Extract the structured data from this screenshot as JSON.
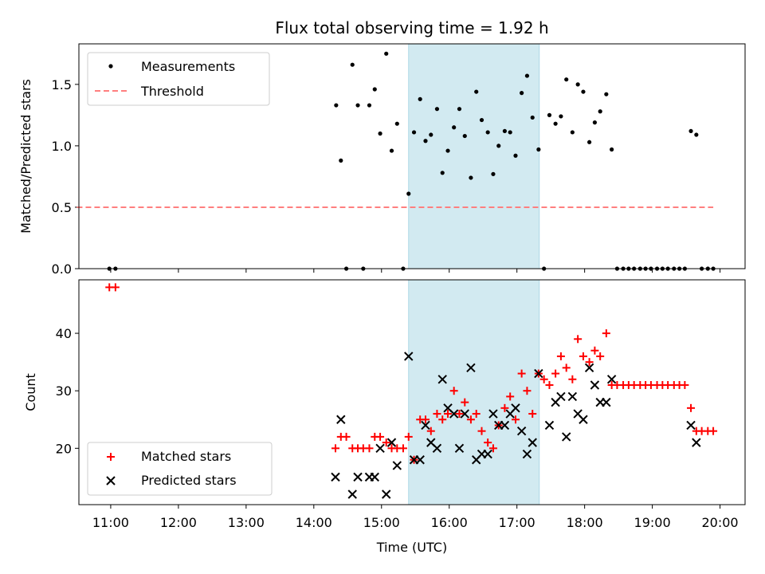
{
  "chart_data": {
    "type": "scatter",
    "title": "Flux total observing time = 1.92 h",
    "xlabel": "Time (UTC)",
    "x_tick_labels": [
      "11:00",
      "12:00",
      "13:00",
      "14:00",
      "15:00",
      "16:00",
      "17:00",
      "18:00",
      "19:00",
      "20:00"
    ],
    "x_range_hours": [
      10.53,
      20.37
    ],
    "shaded_interval_hours": [
      15.4,
      17.33
    ],
    "shade_color": "#add8e6",
    "top": {
      "ylabel": "Matched/Predicted stars",
      "ylim": [
        0.0,
        1.83
      ],
      "y_ticks": [
        "0.0",
        "0.5",
        "1.0",
        "1.5"
      ],
      "legend_position": "upper left",
      "threshold": {
        "name": "Threshold",
        "y": 0.5,
        "x_range": [
          10.5,
          19.9
        ],
        "color": "#ff7f7f"
      },
      "series": [
        {
          "name": "Measurements",
          "color": "#000000",
          "points": [
            [
              10.98,
              0
            ],
            [
              11.07,
              0
            ],
            [
              14.33,
              1.33
            ],
            [
              14.4,
              0.88
            ],
            [
              14.48,
              0
            ],
            [
              14.57,
              1.66
            ],
            [
              14.65,
              1.33
            ],
            [
              14.73,
              0
            ],
            [
              14.82,
              1.33
            ],
            [
              14.9,
              1.46
            ],
            [
              14.98,
              1.1
            ],
            [
              15.07,
              1.75
            ],
            [
              15.15,
              0.96
            ],
            [
              15.23,
              1.18
            ],
            [
              15.32,
              0
            ],
            [
              15.4,
              0.61
            ],
            [
              15.48,
              1.11
            ],
            [
              15.57,
              1.38
            ],
            [
              15.65,
              1.04
            ],
            [
              15.73,
              1.09
            ],
            [
              15.82,
              1.3
            ],
            [
              15.9,
              0.78
            ],
            [
              15.98,
              0.96
            ],
            [
              16.07,
              1.15
            ],
            [
              16.15,
              1.3
            ],
            [
              16.23,
              1.08
            ],
            [
              16.32,
              0.74
            ],
            [
              16.4,
              1.44
            ],
            [
              16.48,
              1.21
            ],
            [
              16.57,
              1.11
            ],
            [
              16.65,
              0.77
            ],
            [
              16.73,
              1.0
            ],
            [
              16.82,
              1.12
            ],
            [
              16.9,
              1.11
            ],
            [
              16.98,
              0.92
            ],
            [
              17.07,
              1.43
            ],
            [
              17.15,
              1.57
            ],
            [
              17.23,
              1.23
            ],
            [
              17.32,
              0.97
            ],
            [
              17.4,
              0
            ],
            [
              17.48,
              1.25
            ],
            [
              17.57,
              1.18
            ],
            [
              17.65,
              1.24
            ],
            [
              17.73,
              1.54
            ],
            [
              17.82,
              1.11
            ],
            [
              17.9,
              1.5
            ],
            [
              17.98,
              1.44
            ],
            [
              18.07,
              1.03
            ],
            [
              18.15,
              1.19
            ],
            [
              18.23,
              1.28
            ],
            [
              18.32,
              1.42
            ],
            [
              18.4,
              0.97
            ],
            [
              18.48,
              0
            ],
            [
              18.57,
              0
            ],
            [
              18.65,
              0
            ],
            [
              18.73,
              0
            ],
            [
              18.82,
              0
            ],
            [
              18.9,
              0
            ],
            [
              18.98,
              0
            ],
            [
              19.07,
              0
            ],
            [
              19.15,
              0
            ],
            [
              19.23,
              0
            ],
            [
              19.32,
              0
            ],
            [
              19.4,
              0
            ],
            [
              19.48,
              0
            ],
            [
              19.57,
              1.12
            ],
            [
              19.65,
              1.09
            ],
            [
              19.73,
              0
            ],
            [
              19.82,
              0
            ],
            [
              19.9,
              0
            ]
          ]
        }
      ]
    },
    "bottom": {
      "ylabel": "Count",
      "ylim": [
        10.2,
        49.3
      ],
      "y_ticks": [
        "20",
        "30",
        "40"
      ],
      "legend_position": "lower left",
      "series": [
        {
          "name": "Matched stars",
          "marker": "+",
          "color": "#ff0000",
          "points": [
            [
              10.98,
              48
            ],
            [
              11.07,
              48
            ],
            [
              14.32,
              20
            ],
            [
              14.4,
              22
            ],
            [
              14.48,
              22
            ],
            [
              14.57,
              20
            ],
            [
              14.65,
              20
            ],
            [
              14.73,
              20
            ],
            [
              14.82,
              20
            ],
            [
              14.9,
              22
            ],
            [
              14.98,
              22
            ],
            [
              15.07,
              21
            ],
            [
              15.15,
              20
            ],
            [
              15.23,
              20
            ],
            [
              15.32,
              20
            ],
            [
              15.4,
              22
            ],
            [
              15.48,
              18
            ],
            [
              15.57,
              25
            ],
            [
              15.65,
              25
            ],
            [
              15.73,
              23
            ],
            [
              15.82,
              26
            ],
            [
              15.9,
              25
            ],
            [
              15.98,
              26
            ],
            [
              16.07,
              30
            ],
            [
              16.15,
              26
            ],
            [
              16.23,
              28
            ],
            [
              16.32,
              25
            ],
            [
              16.4,
              26
            ],
            [
              16.48,
              23
            ],
            [
              16.57,
              21
            ],
            [
              16.65,
              20
            ],
            [
              16.73,
              24
            ],
            [
              16.82,
              27
            ],
            [
              16.9,
              29
            ],
            [
              16.98,
              25
            ],
            [
              17.07,
              33
            ],
            [
              17.15,
              30
            ],
            [
              17.23,
              26
            ],
            [
              17.32,
              33
            ],
            [
              17.4,
              32
            ],
            [
              17.48,
              31
            ],
            [
              17.57,
              33
            ],
            [
              17.65,
              36
            ],
            [
              17.73,
              34
            ],
            [
              17.82,
              32
            ],
            [
              17.9,
              39
            ],
            [
              17.98,
              36
            ],
            [
              18.07,
              35
            ],
            [
              18.15,
              37
            ],
            [
              18.23,
              36
            ],
            [
              18.32,
              40
            ],
            [
              18.4,
              31
            ],
            [
              18.48,
              31
            ],
            [
              18.57,
              31
            ],
            [
              18.65,
              31
            ],
            [
              18.73,
              31
            ],
            [
              18.82,
              31
            ],
            [
              18.9,
              31
            ],
            [
              18.98,
              31
            ],
            [
              19.07,
              31
            ],
            [
              19.15,
              31
            ],
            [
              19.23,
              31
            ],
            [
              19.32,
              31
            ],
            [
              19.4,
              31
            ],
            [
              19.48,
              31
            ],
            [
              19.57,
              27
            ],
            [
              19.65,
              23
            ],
            [
              19.73,
              23
            ],
            [
              19.82,
              23
            ],
            [
              19.9,
              23
            ]
          ]
        },
        {
          "name": "Predicted stars",
          "marker": "x",
          "color": "#000000",
          "points": [
            [
              14.32,
              15
            ],
            [
              14.4,
              25
            ],
            [
              14.57,
              12
            ],
            [
              14.65,
              15
            ],
            [
              14.82,
              15
            ],
            [
              14.9,
              15
            ],
            [
              14.98,
              20
            ],
            [
              15.07,
              12
            ],
            [
              15.15,
              21
            ],
            [
              15.23,
              17
            ],
            [
              15.4,
              36
            ],
            [
              15.48,
              18
            ],
            [
              15.57,
              18
            ],
            [
              15.65,
              24
            ],
            [
              15.73,
              21
            ],
            [
              15.82,
              20
            ],
            [
              15.9,
              32
            ],
            [
              15.98,
              27
            ],
            [
              16.07,
              26
            ],
            [
              16.15,
              20
            ],
            [
              16.23,
              26
            ],
            [
              16.32,
              34
            ],
            [
              16.4,
              18
            ],
            [
              16.48,
              19
            ],
            [
              16.57,
              19
            ],
            [
              16.65,
              26
            ],
            [
              16.73,
              24
            ],
            [
              16.82,
              24
            ],
            [
              16.9,
              26
            ],
            [
              16.98,
              27
            ],
            [
              17.07,
              23
            ],
            [
              17.15,
              19
            ],
            [
              17.23,
              21
            ],
            [
              17.32,
              33
            ],
            [
              17.48,
              24
            ],
            [
              17.57,
              28
            ],
            [
              17.65,
              29
            ],
            [
              17.73,
              22
            ],
            [
              17.82,
              29
            ],
            [
              17.9,
              26
            ],
            [
              17.98,
              25
            ],
            [
              18.07,
              34
            ],
            [
              18.15,
              31
            ],
            [
              18.23,
              28
            ],
            [
              18.32,
              28
            ],
            [
              18.4,
              32
            ],
            [
              19.57,
              24
            ],
            [
              19.65,
              21
            ]
          ]
        }
      ]
    }
  }
}
